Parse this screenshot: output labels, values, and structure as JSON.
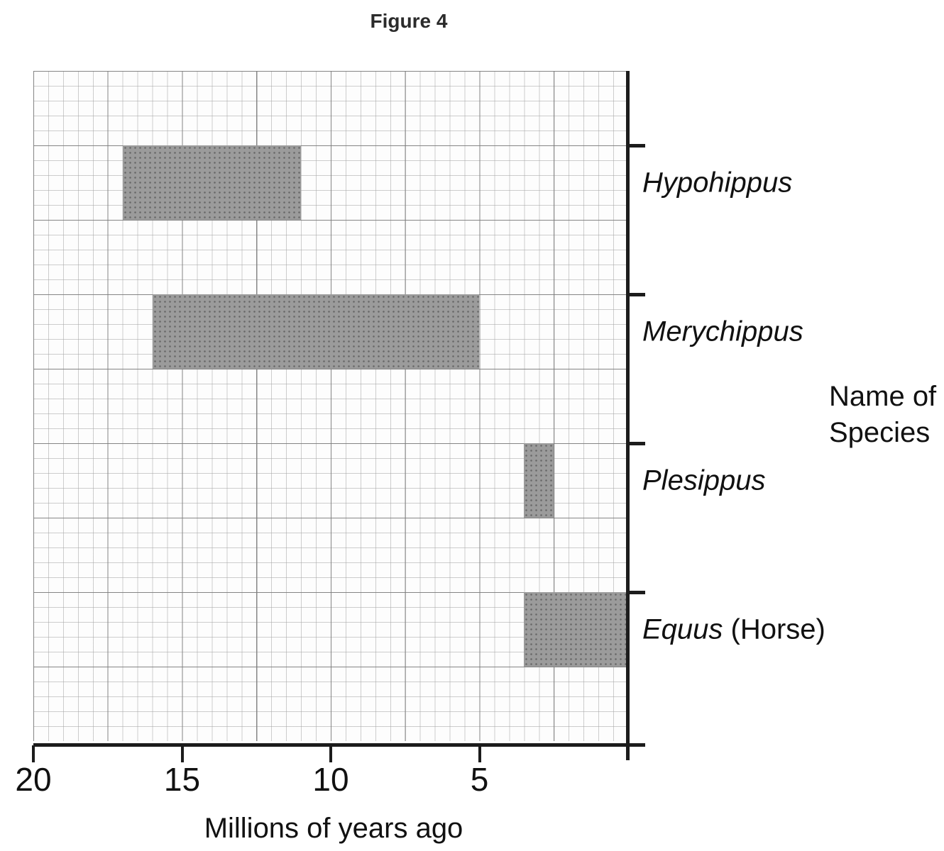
{
  "chart_data": {
    "type": "bar",
    "orientation": "horizontal",
    "title": "Figure 4",
    "xlabel": "Millions of years ago",
    "ylabel": "Name of Species",
    "ylabel_lines": [
      "Name of",
      "Species"
    ],
    "xlim": [
      20,
      0
    ],
    "x_ticks": [
      20,
      15,
      10,
      5
    ],
    "x_minor_step": 0.5,
    "x_major_step": 2.5,
    "grid": "on (graph paper: minor cells 0.5 Myr, major lines 2.5 Myr)",
    "legend": "none",
    "bar_color": "#9b9b9b",
    "bars": [
      {
        "label": "Hypohippus",
        "label_italic": "Hypohippus",
        "label_plain": "",
        "start_mya": 17,
        "end_mya": 11
      },
      {
        "label": "Merychippus",
        "label_italic": "Merychippus",
        "label_plain": "",
        "start_mya": 16,
        "end_mya": 5
      },
      {
        "label": "Plesippus",
        "label_italic": "Plesippus",
        "label_plain": "",
        "start_mya": 3.5,
        "end_mya": 2.5
      },
      {
        "label": "Equus (Horse)",
        "label_italic": "Equus",
        "label_plain": " (Horse)",
        "start_mya": 3.5,
        "end_mya": 0
      }
    ]
  }
}
